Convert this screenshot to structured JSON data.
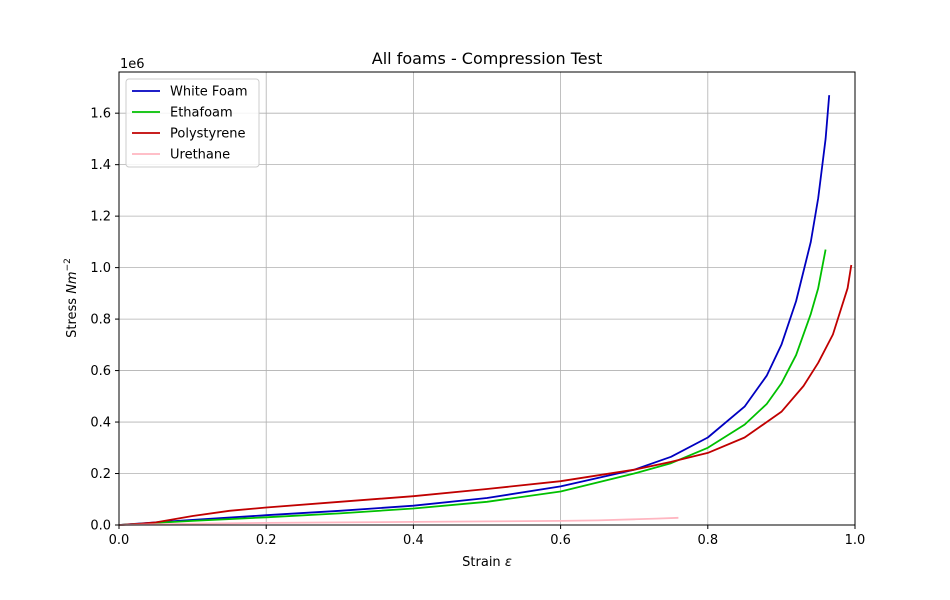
{
  "chart_data": {
    "type": "line",
    "title": "All foams - Compression Test",
    "xlabel_text": "Strain ",
    "xlabel_symbol": "ε",
    "ylabel_text": "Stress ",
    "ylabel_symbol": "Nm",
    "ylabel_exponent": "−2",
    "y_offset_label": "1e6",
    "xlim": [
      0,
      1
    ],
    "ylim": [
      0,
      1.76
    ],
    "xticks": [
      0.0,
      0.2,
      0.4,
      0.6,
      0.8,
      1.0
    ],
    "xtick_labels": [
      "0.0",
      "0.2",
      "0.4",
      "0.6",
      "0.8",
      "1.0"
    ],
    "yticks": [
      0.0,
      0.2,
      0.4,
      0.6,
      0.8,
      1.0,
      1.2,
      1.4,
      1.6
    ],
    "ytick_labels": [
      "0.0",
      "0.2",
      "0.4",
      "0.6",
      "0.8",
      "1.0",
      "1.2",
      "1.4",
      "1.6"
    ],
    "grid": true,
    "legend_position": "top-left",
    "series": [
      {
        "name": "White Foam",
        "color": "#0000c0",
        "x": [
          0.0,
          0.05,
          0.1,
          0.2,
          0.3,
          0.4,
          0.5,
          0.6,
          0.7,
          0.75,
          0.8,
          0.85,
          0.88,
          0.9,
          0.92,
          0.94,
          0.95,
          0.96,
          0.965
        ],
        "y": [
          0.0,
          0.01,
          0.02,
          0.038,
          0.055,
          0.075,
          0.105,
          0.15,
          0.215,
          0.265,
          0.34,
          0.46,
          0.58,
          0.7,
          0.87,
          1.1,
          1.27,
          1.5,
          1.67
        ]
      },
      {
        "name": "Ethafoam",
        "color": "#00c000",
        "x": [
          0.0,
          0.05,
          0.1,
          0.2,
          0.3,
          0.4,
          0.5,
          0.6,
          0.7,
          0.75,
          0.8,
          0.85,
          0.88,
          0.9,
          0.92,
          0.94,
          0.95,
          0.96
        ],
        "y": [
          0.0,
          0.008,
          0.016,
          0.03,
          0.045,
          0.064,
          0.09,
          0.13,
          0.2,
          0.24,
          0.3,
          0.39,
          0.47,
          0.55,
          0.66,
          0.82,
          0.92,
          1.07
        ]
      },
      {
        "name": "Polystyrene",
        "color": "#c00000",
        "x": [
          0.0,
          0.03,
          0.05,
          0.1,
          0.15,
          0.2,
          0.3,
          0.4,
          0.5,
          0.6,
          0.7,
          0.75,
          0.8,
          0.85,
          0.9,
          0.93,
          0.95,
          0.97,
          0.99,
          0.995
        ],
        "y": [
          0.0,
          0.005,
          0.01,
          0.035,
          0.055,
          0.068,
          0.09,
          0.112,
          0.14,
          0.17,
          0.215,
          0.245,
          0.28,
          0.34,
          0.44,
          0.54,
          0.63,
          0.74,
          0.92,
          1.01
        ]
      },
      {
        "name": "Urethane",
        "color": "#ffb6c1",
        "x": [
          0.0,
          0.1,
          0.2,
          0.3,
          0.4,
          0.5,
          0.6,
          0.65,
          0.7,
          0.73,
          0.76
        ],
        "y": [
          0.0,
          0.005,
          0.008,
          0.01,
          0.012,
          0.014,
          0.016,
          0.018,
          0.022,
          0.025,
          0.028
        ]
      }
    ]
  }
}
